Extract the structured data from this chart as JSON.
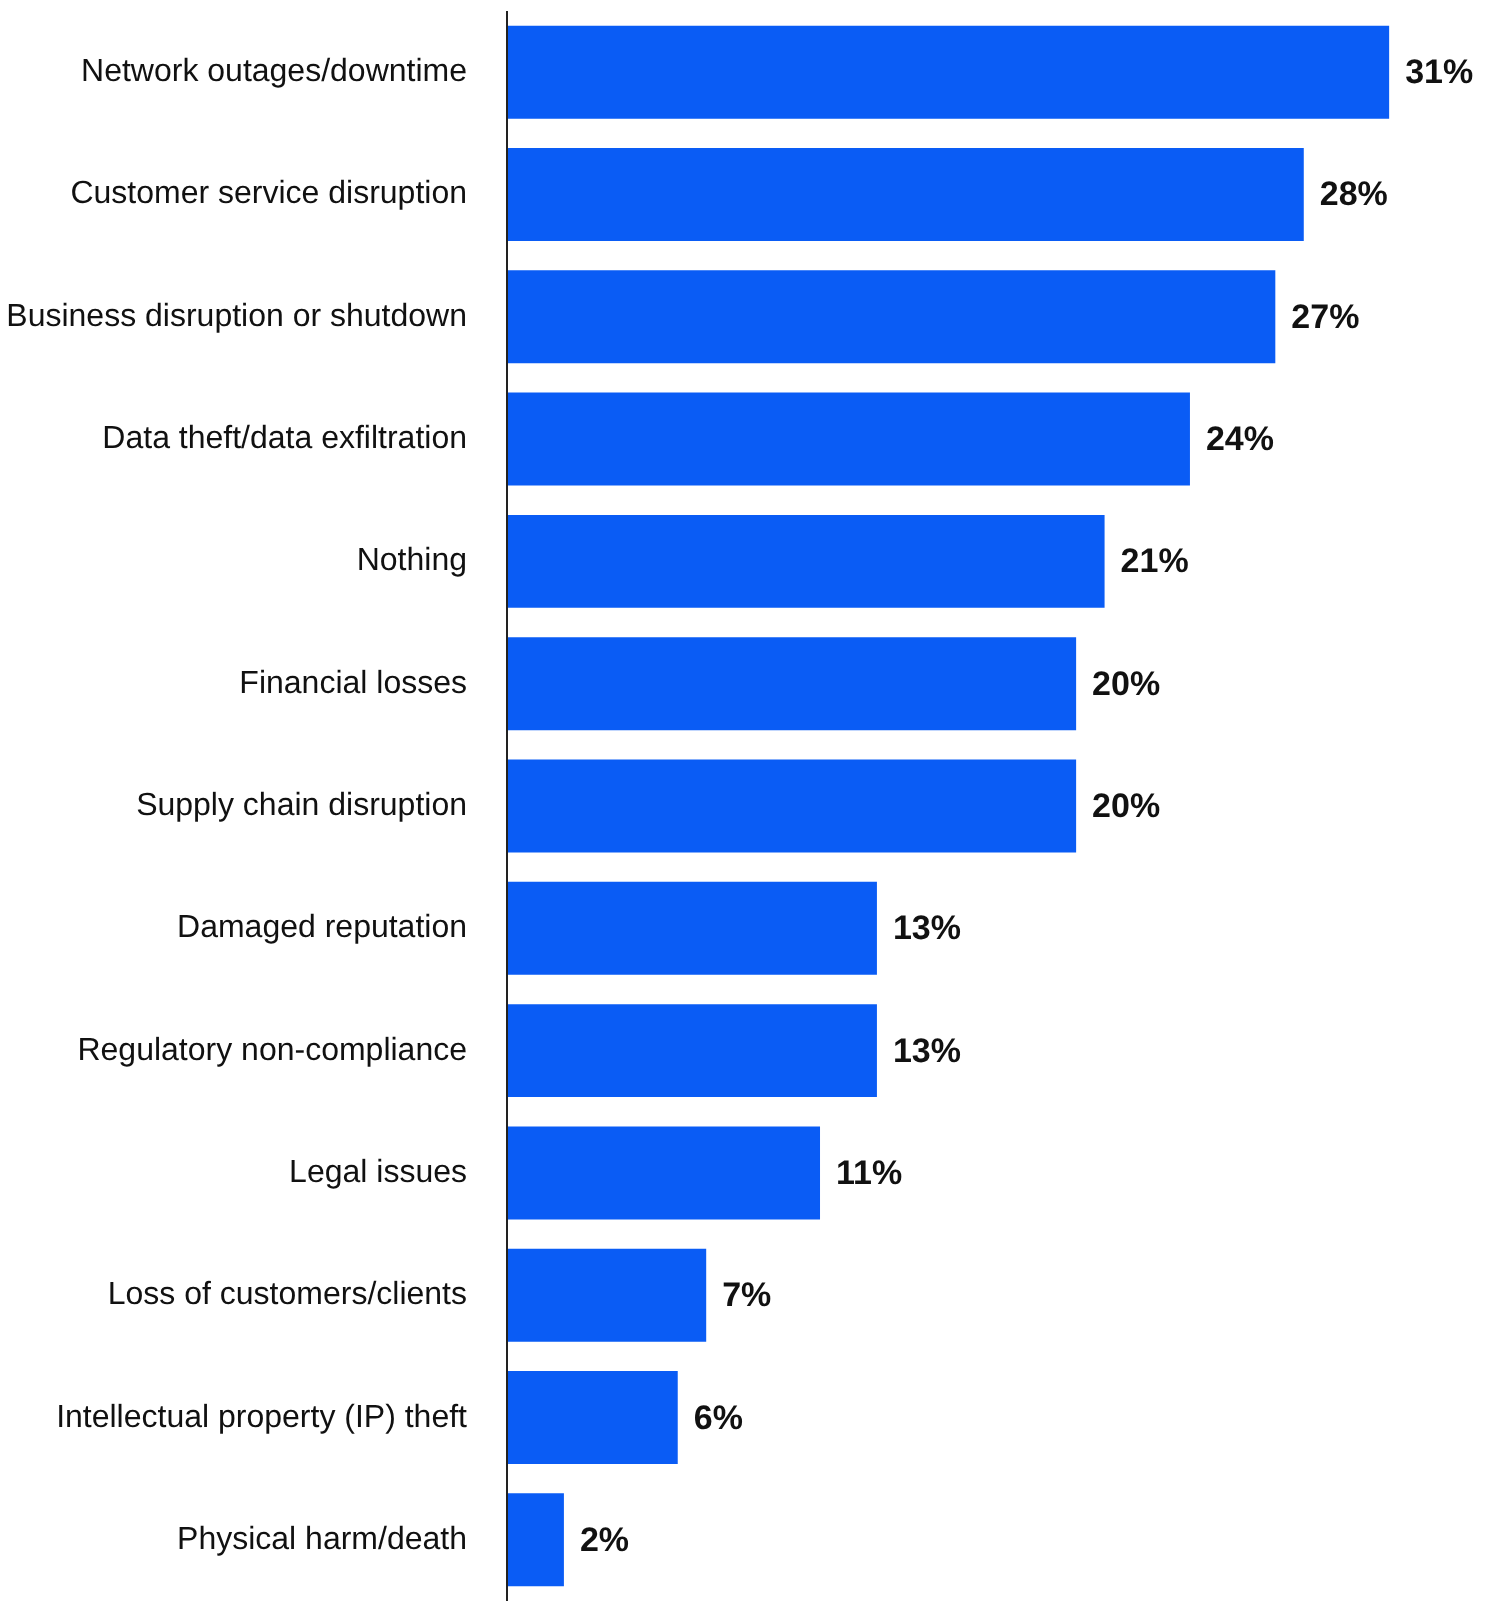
{
  "chart_data": {
    "type": "bar",
    "orientation": "horizontal",
    "categories": [
      "Network outages/downtime",
      "Customer service disruption",
      "Business disruption or shutdown",
      "Data theft/data exfiltration",
      "Nothing",
      "Financial losses",
      "Supply chain disruption",
      "Damaged reputation",
      "Regulatory non-compliance",
      "Legal issues",
      "Loss of customers/clients",
      "Intellectual property (IP) theft",
      "Physical harm/death"
    ],
    "values": [
      31,
      28,
      27,
      24,
      21,
      20,
      20,
      13,
      13,
      11,
      7,
      6,
      2
    ],
    "value_labels": [
      "31%",
      "28%",
      "27%",
      "24%",
      "21%",
      "20%",
      "20%",
      "13%",
      "13%",
      "11%",
      "7%",
      "6%",
      "2%"
    ],
    "color": "#0a5cf5",
    "grid": false,
    "tick_labels": "y"
  }
}
